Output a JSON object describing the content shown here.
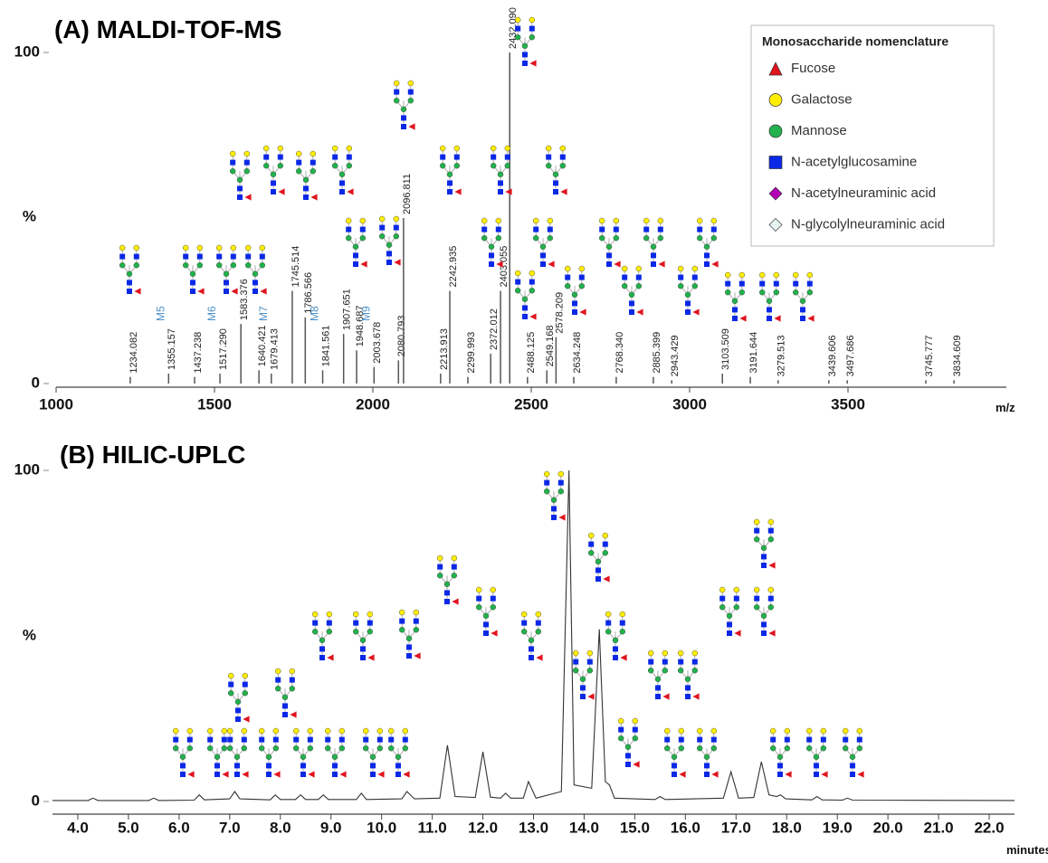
{
  "chart_data": [
    {
      "type": "spectrum",
      "title": "(A) MALDI-TOF-MS",
      "x_label": "m/z",
      "y_label": "%",
      "color": "#555555",
      "x": [
        1234.082,
        1355.157,
        1437.238,
        1517.29,
        1583.376,
        1640.421,
        1679.413,
        1745.514,
        1786.566,
        1841.561,
        1907.651,
        1948.687,
        2003.678,
        2080.793,
        2096.811,
        2213.913,
        2242.935,
        2299.993,
        2372.012,
        2403.055,
        2432.09,
        2488.125,
        2549.168,
        2578.209,
        2634.248,
        2768.34,
        2885.399,
        2943.429,
        3103.509,
        3191.644,
        3279.513,
        3439.606,
        3497.686,
        3745.777,
        3834.609
      ],
      "x_labels": [
        "1234.082",
        "1355.157",
        "1437.238",
        "1517.290",
        "1583.376",
        "1640.421",
        "1679.413",
        "1745.514",
        "1786.566",
        "1841.561",
        "1907.651",
        "1948.687",
        "2003.678",
        "2080.793",
        "2096.811",
        "2213.913",
        "2242.935",
        "2299.993",
        "2372.012",
        "2403.055",
        "2432.090",
        "2488.125",
        "2549.168",
        "2578.209",
        "2634.248",
        "2768.340",
        "2885.399",
        "2943.429",
        "3103.509",
        "3191.644",
        "3279.513",
        "3439.606",
        "3497.686",
        "3745.777",
        "3834.609"
      ],
      "values": [
        2,
        3,
        2,
        3,
        18,
        4,
        3,
        28,
        20,
        4,
        15,
        10,
        5,
        7,
        50,
        3,
        28,
        2,
        9,
        28,
        100,
        2,
        4,
        14,
        2,
        2,
        2,
        1,
        3,
        2,
        1,
        1,
        1,
        1,
        1
      ],
      "annotations": [
        {
          "text": "M5",
          "x": 1355.157
        },
        {
          "text": "M6",
          "x": 1517.29
        },
        {
          "text": "M7",
          "x": 1679.413
        },
        {
          "text": "M8",
          "x": 1841.561
        },
        {
          "text": "M9",
          "x": 2003.678
        }
      ],
      "xlim": [
        1000,
        4000
      ],
      "xticks": [
        1000,
        1500,
        2000,
        2500,
        3000,
        3500
      ],
      "ylim": [
        0,
        100
      ],
      "yticks": [
        0,
        100
      ],
      "legend": {
        "title": "Monosaccharide nomenclature",
        "position": "upper right",
        "items": [
          {
            "name": "Fucose",
            "color": "#e0141e",
            "shape": "triangle"
          },
          {
            "name": "Galactose",
            "color": "#ffee00",
            "shape": "circle"
          },
          {
            "name": "Mannose",
            "color": "#22b14c",
            "shape": "circle"
          },
          {
            "name": "N-acetylglucosamine",
            "color": "#0a28e6",
            "shape": "square"
          },
          {
            "name": "N-acetylneuraminic acid",
            "color": "#b400b4",
            "shape": "diamond"
          },
          {
            "name": "N-glycolylneuraminic acid",
            "color": "#e8f6f6",
            "shape": "diamond"
          }
        ]
      }
    },
    {
      "type": "line",
      "title": "(B) HILIC-UPLC",
      "x_label": "minutes",
      "y_label": "%",
      "color": "#333333",
      "x": [
        3.5,
        4.2,
        4.3,
        4.4,
        5.4,
        5.5,
        5.6,
        6.3,
        6.4,
        6.5,
        7.0,
        7.1,
        7.2,
        7.8,
        7.9,
        8.0,
        8.3,
        8.4,
        8.5,
        8.75,
        8.85,
        8.95,
        9.5,
        9.6,
        9.7,
        10.4,
        10.5,
        10.65,
        11.15,
        11.3,
        11.45,
        11.85,
        12.0,
        12.15,
        12.35,
        12.45,
        12.55,
        12.8,
        12.9,
        13.05,
        13.55,
        13.7,
        13.8,
        14.15,
        14.3,
        14.42,
        14.5,
        14.6,
        15.4,
        15.5,
        15.6,
        16.75,
        16.9,
        17.05,
        17.35,
        17.5,
        17.65,
        17.8,
        17.88,
        17.98,
        18.5,
        18.6,
        18.7,
        19.1,
        19.2,
        19.3,
        22.5
      ],
      "values": [
        0.3,
        0.3,
        1,
        0.3,
        0.3,
        1,
        0.3,
        0.4,
        2,
        0.5,
        0.8,
        3,
        0.8,
        0.5,
        2,
        0.6,
        0.6,
        2,
        0.6,
        0.6,
        2,
        0.6,
        0.6,
        2.5,
        0.6,
        0.8,
        3,
        0.8,
        1,
        17,
        1.5,
        1.2,
        15,
        1.3,
        1,
        2.5,
        1,
        1,
        6,
        1,
        3,
        100,
        5,
        4,
        52,
        6,
        5,
        1,
        0.6,
        1.5,
        0.6,
        1,
        9,
        1,
        1.2,
        12,
        2,
        1.5,
        2,
        0.8,
        0.5,
        1.5,
        0.5,
        0.4,
        1,
        0.4,
        0.3
      ],
      "xlim": [
        3.5,
        22.5
      ],
      "xticks": [
        {
          "value": 4,
          "label": "4.0"
        },
        {
          "value": 5,
          "label": "5.0"
        },
        {
          "value": 6,
          "label": "6.0"
        },
        {
          "value": 7,
          "label": "7.0"
        },
        {
          "value": 8,
          "label": "8.0"
        },
        {
          "value": 9,
          "label": "9.0"
        },
        {
          "value": 10,
          "label": "10.0"
        },
        {
          "value": 11,
          "label": "11.0"
        },
        {
          "value": 12,
          "label": "12.0"
        },
        {
          "value": 13,
          "label": "13.0"
        },
        {
          "value": 14,
          "label": "14.0"
        },
        {
          "value": 15,
          "label": "15.0"
        },
        {
          "value": 16,
          "label": "16.0"
        },
        {
          "value": 17,
          "label": "17.0"
        },
        {
          "value": 18,
          "label": "18.0"
        },
        {
          "value": 19,
          "label": "19.0"
        },
        {
          "value": 20,
          "label": "20.0"
        },
        {
          "value": 21,
          "label": "21.0"
        },
        {
          "value": 22,
          "label": "22.0"
        }
      ],
      "ylim": [
        0,
        100
      ],
      "yticks": [
        0,
        100
      ]
    }
  ]
}
